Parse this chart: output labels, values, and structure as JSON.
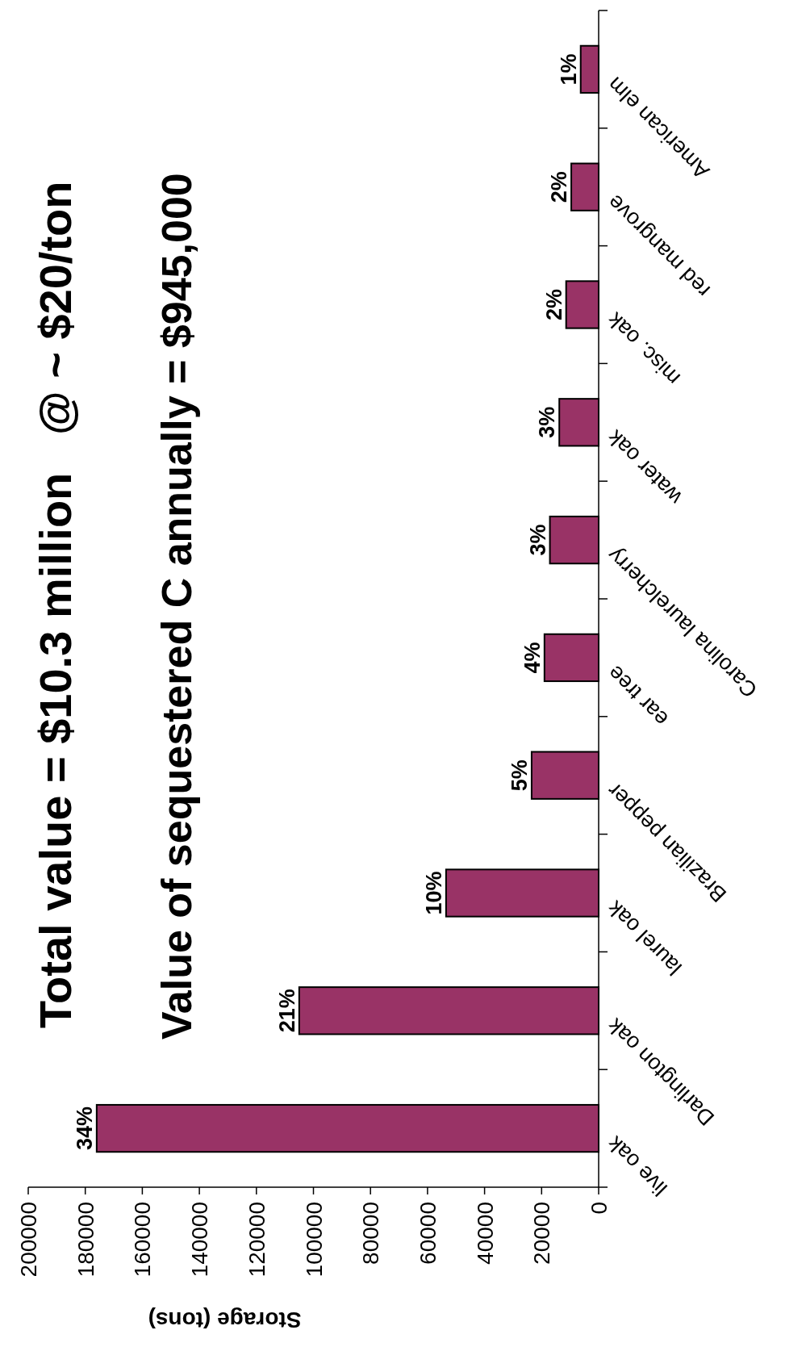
{
  "chart_data": {
    "type": "bar",
    "orientation": "horizontal",
    "title": "Total value = $10.3 million   @ ~ $20/ton",
    "subtitle": "Value of sequestered C annually = $945,000",
    "xlabel": "Storage (tons)",
    "categories": [
      "American elm",
      "red mangrove",
      "misc. oak",
      "water oak",
      "Carolina laurelcherry",
      "ear tree",
      "Brazilian pepper",
      "laurel oak",
      "Darlington oak",
      "live oak"
    ],
    "values": [
      6300,
      9600,
      11400,
      13800,
      17100,
      19000,
      23500,
      53500,
      105000,
      176000
    ],
    "annotations": [
      "1%",
      "2%",
      "2%",
      "3%",
      "3%",
      "4%",
      "5%",
      "10%",
      "21%",
      "34%"
    ],
    "color": "#993366",
    "xlim": [
      200000,
      0
    ],
    "xticks": [
      0,
      20000,
      40000,
      60000,
      80000,
      100000,
      120000,
      140000,
      160000,
      180000,
      200000
    ]
  }
}
